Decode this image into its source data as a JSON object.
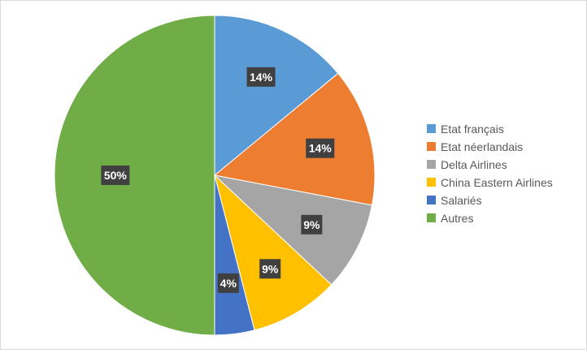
{
  "chart_data": {
    "type": "pie",
    "title": "",
    "categories": [
      "Etat français",
      "Etat néerlandais",
      "Delta Airlines",
      "China Eastern Airlines",
      "Salariés",
      "Autres"
    ],
    "values": [
      14,
      14,
      9,
      9,
      4,
      50
    ],
    "labels": [
      "14%",
      "14%",
      "9%",
      "9%",
      "4%",
      "50%"
    ],
    "colors": [
      "#5b9bd5",
      "#ed7d31",
      "#a5a5a5",
      "#ffc000",
      "#4472c4",
      "#70ad47"
    ],
    "legend_position": "right",
    "start_angle_deg": 0,
    "direction": "clockwise"
  }
}
